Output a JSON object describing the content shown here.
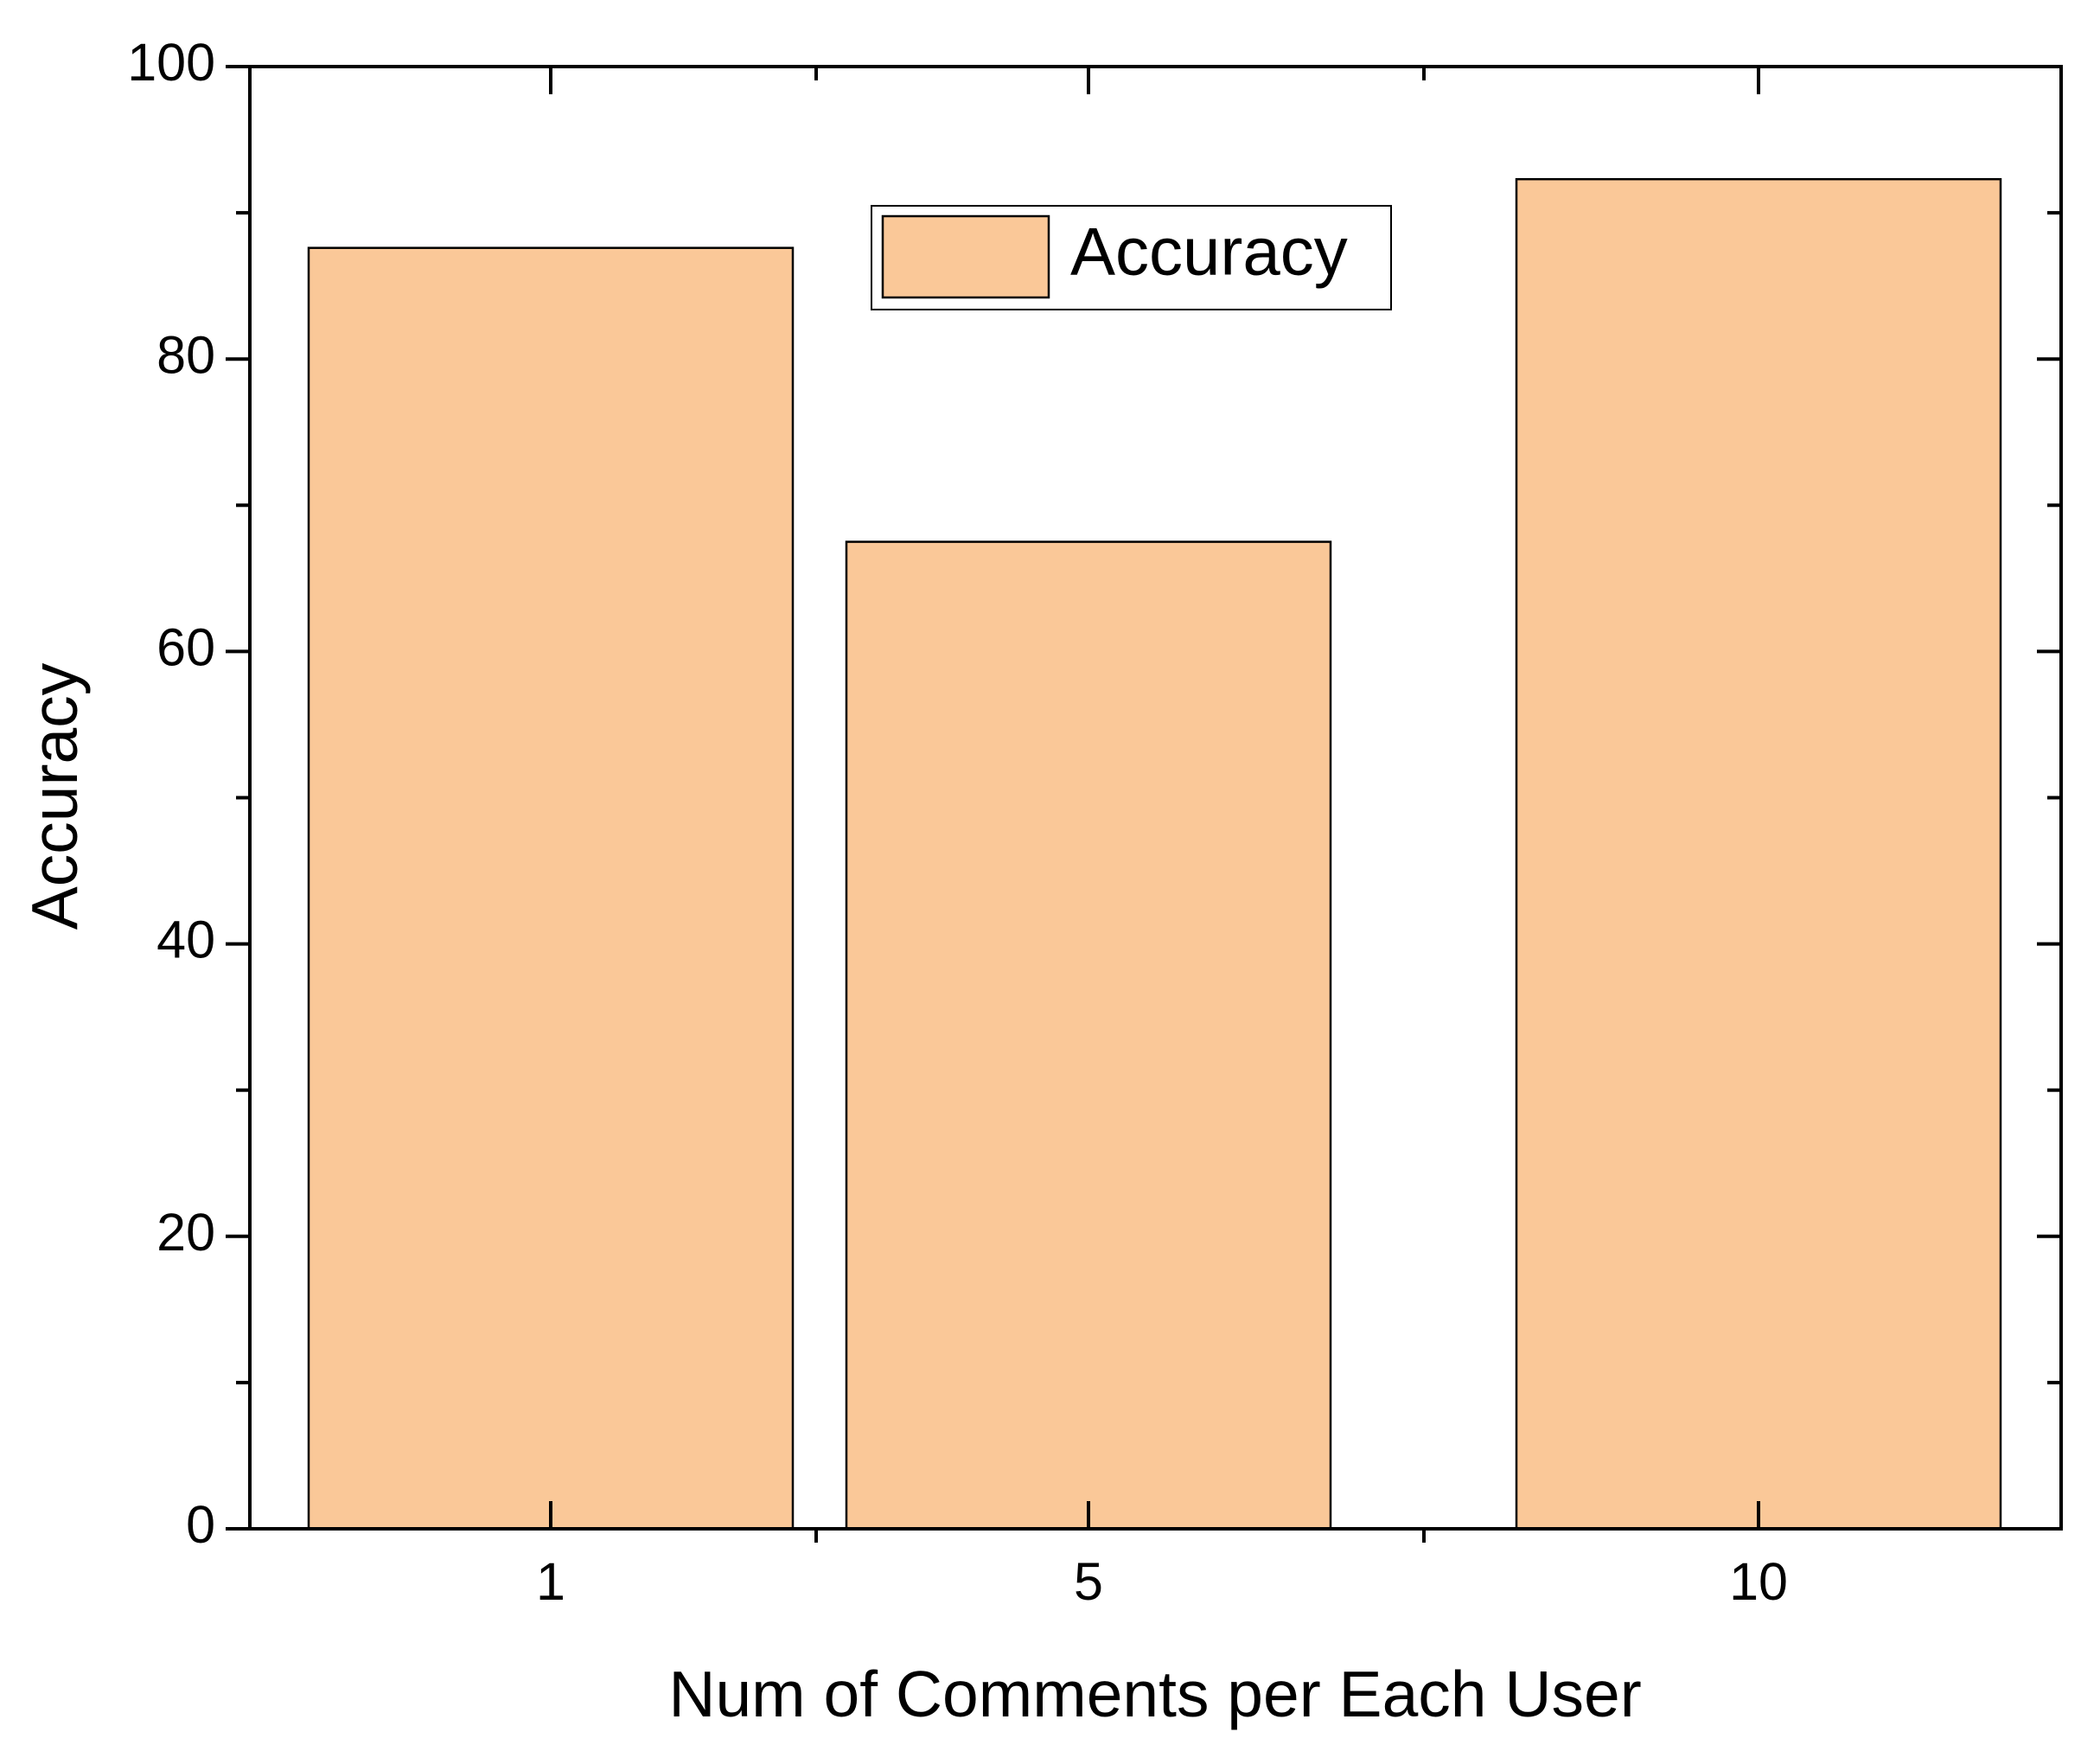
{
  "chart_data": {
    "type": "bar",
    "x_label": "Num of Comments per Each User",
    "y_label": "Accuracy",
    "categories": [
      "1",
      "5",
      "10"
    ],
    "series": [
      {
        "name": "Accuracy",
        "color": "#fac898",
        "values": [
          87.6,
          67.5,
          92.3
        ]
      }
    ],
    "ylim": [
      0,
      100
    ],
    "yticks": [
      0,
      20,
      40,
      60,
      80,
      100
    ],
    "legend": "top"
  }
}
